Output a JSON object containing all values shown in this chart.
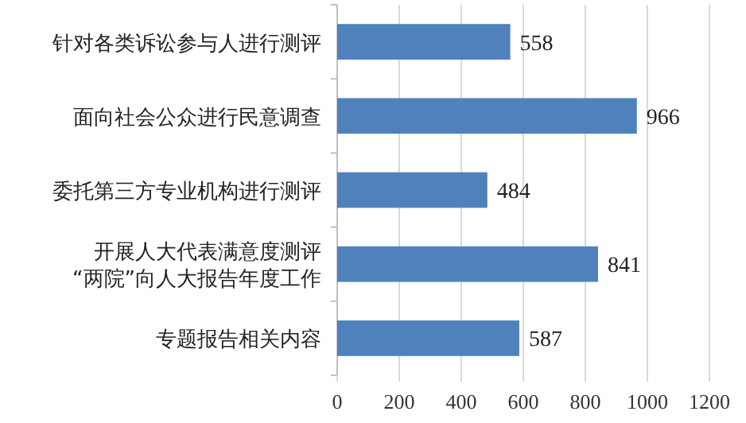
{
  "chart_data": {
    "type": "bar",
    "orientation": "horizontal",
    "categories": [
      "针对各类诉讼参与人进行测评",
      "面向社会公众进行民意调查",
      "委托第三方专业机构进行测评",
      "开展人大代表满意度测评\n“两院”向人大报告年度工作",
      "专题报告相关内容"
    ],
    "values": [
      558,
      966,
      484,
      841,
      587
    ],
    "color": "#4f81bd",
    "xlim": [
      0,
      1200
    ],
    "xticks": [
      0,
      200,
      400,
      600,
      800,
      1000,
      1200
    ],
    "grid": "x",
    "data_labels": true
  }
}
